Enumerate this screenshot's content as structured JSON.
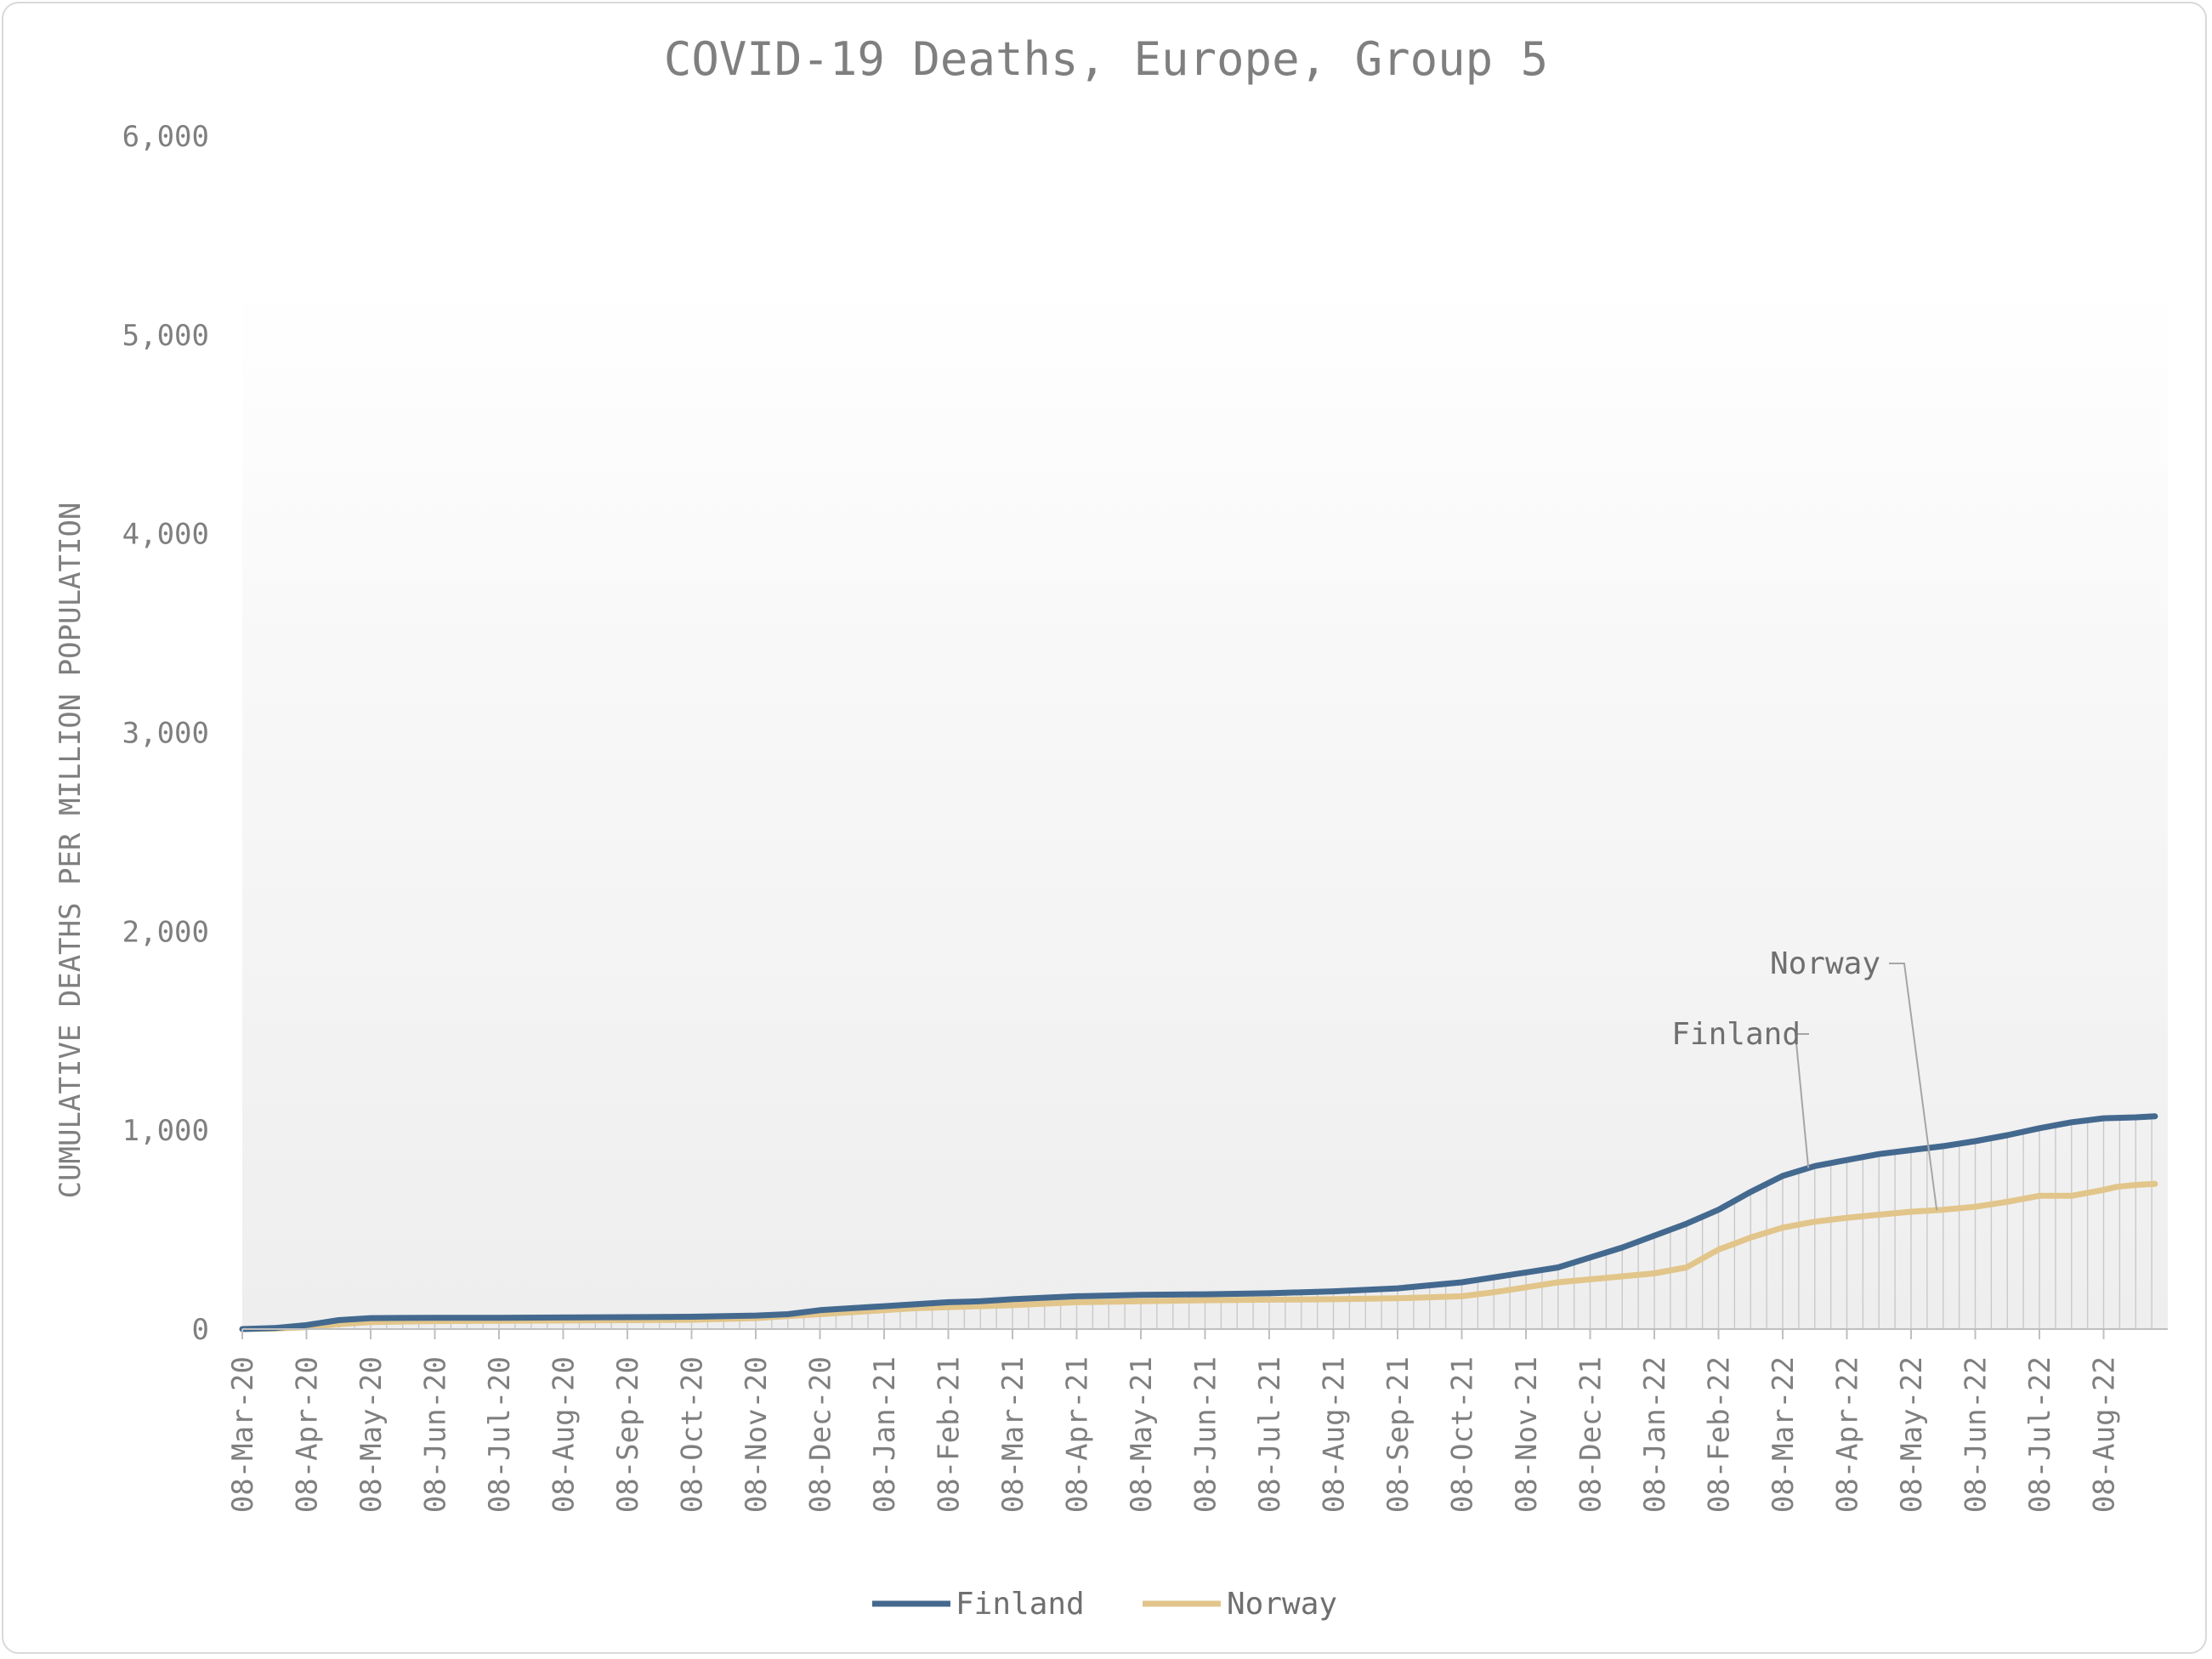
{
  "chart_data": {
    "type": "line",
    "title": "COVID-19 Deaths, Europe, Group 5",
    "ylabel": "CUMULATIVE DEATHS PER MILLION POPULATION",
    "xlabel": "",
    "ylim": [
      0,
      6000
    ],
    "yticks": [
      0,
      1000,
      2000,
      3000,
      4000,
      5000,
      6000
    ],
    "ytick_labels": [
      "0",
      "1,000",
      "2,000",
      "3,000",
      "4,000",
      "5,000",
      "6,000"
    ],
    "x_tick_labels": [
      "08-Mar-20",
      "08-Apr-20",
      "08-May-20",
      "08-Jun-20",
      "08-Jul-20",
      "08-Aug-20",
      "08-Sep-20",
      "08-Oct-20",
      "08-Nov-20",
      "08-Dec-20",
      "08-Jan-21",
      "08-Feb-21",
      "08-Mar-21",
      "08-Apr-21",
      "08-May-21",
      "08-Jun-21",
      "08-Jul-21",
      "08-Aug-21",
      "08-Sep-21",
      "08-Oct-21",
      "08-Nov-21",
      "08-Dec-21",
      "08-Jan-22",
      "08-Feb-22",
      "08-Mar-22",
      "08-Apr-22",
      "08-May-22",
      "08-Jun-22",
      "08-Jul-22",
      "08-Aug-22"
    ],
    "x_months_span": 30,
    "legend_position": "bottom",
    "grid": false,
    "series": [
      {
        "name": "Finland",
        "color": "#44698f",
        "x_months": [
          0,
          0.5,
          1,
          1.5,
          2,
          2.5,
          3,
          4,
          5,
          6,
          7,
          8,
          8.5,
          9,
          9.5,
          10,
          10.5,
          11,
          11.5,
          12,
          13,
          14,
          15,
          16,
          17,
          18,
          19,
          19.5,
          20,
          20.5,
          21,
          21.5,
          22,
          22.5,
          23,
          23.5,
          24,
          24.5,
          25,
          25.5,
          26,
          26.5,
          27,
          27.5,
          28,
          28.5,
          29,
          29.5,
          29.8
        ],
        "values": [
          0,
          5,
          20,
          45,
          55,
          56,
          57,
          57,
          58,
          60,
          62,
          68,
          75,
          95,
          105,
          115,
          125,
          135,
          140,
          150,
          165,
          172,
          175,
          180,
          190,
          205,
          235,
          260,
          285,
          310,
          360,
          410,
          470,
          530,
          600,
          690,
          770,
          820,
          850,
          880,
          900,
          920,
          945,
          975,
          1010,
          1040,
          1060,
          1065,
          1070
        ]
      },
      {
        "name": "Norway",
        "color": "#e2c58a",
        "x_months": [
          0,
          0.5,
          1,
          1.5,
          2,
          3,
          4,
          5,
          6,
          7,
          8,
          8.5,
          9,
          9.5,
          10,
          10.5,
          11,
          12,
          13,
          14,
          15,
          16,
          17,
          18,
          19,
          19.5,
          20,
          20.5,
          21,
          21.5,
          22,
          22.5,
          23,
          23.5,
          24,
          24.5,
          25,
          25.5,
          26,
          26.5,
          27,
          27.5,
          28,
          28.5,
          29,
          29.2,
          29.5,
          29.8
        ],
        "values": [
          0,
          2,
          10,
          25,
          35,
          40,
          42,
          43,
          45,
          47,
          55,
          65,
          75,
          85,
          95,
          105,
          110,
          120,
          135,
          140,
          145,
          148,
          150,
          155,
          165,
          185,
          210,
          235,
          250,
          265,
          280,
          310,
          400,
          460,
          510,
          540,
          560,
          575,
          590,
          600,
          615,
          640,
          670,
          670,
          700,
          715,
          725,
          730
        ]
      }
    ],
    "annotations": [
      {
        "text": "Finland",
        "series": "Finland",
        "x_month": 24.4
      },
      {
        "text": "Norway",
        "series": "Norway",
        "x_month": 26.4
      }
    ]
  }
}
